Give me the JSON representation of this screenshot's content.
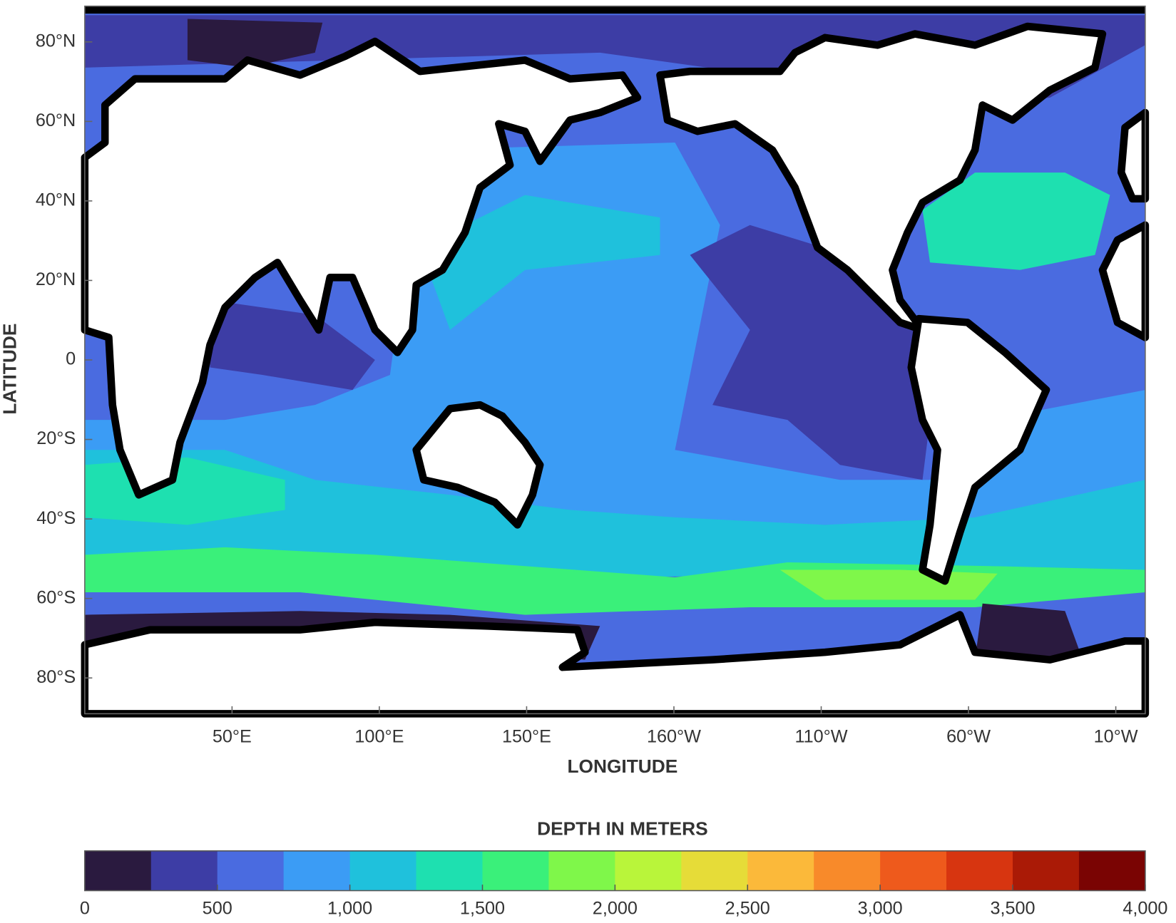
{
  "chart_data": {
    "type": "map",
    "x_label": "LONGITUDE",
    "y_label": "LATITUDE",
    "xlim": [
      0,
      360
    ],
    "ylim": [
      -89,
      89
    ],
    "xticks": [
      {
        "value": 50,
        "label": "50°E"
      },
      {
        "value": 100,
        "label": "100°E"
      },
      {
        "value": 150,
        "label": "150°E"
      },
      {
        "value": 200,
        "label": "160°W"
      },
      {
        "value": 250,
        "label": "110°W"
      },
      {
        "value": 300,
        "label": "60°W"
      },
      {
        "value": 350,
        "label": "10°W"
      }
    ],
    "yticks": [
      {
        "value": 80,
        "label": "80°N"
      },
      {
        "value": 60,
        "label": "60°N"
      },
      {
        "value": 40,
        "label": "40°N"
      },
      {
        "value": 20,
        "label": "20°N"
      },
      0,
      {
        "value": -20,
        "label": "20°S"
      },
      {
        "value": -40,
        "label": "40°S"
      },
      {
        "value": -60,
        "label": "60°S"
      },
      {
        "value": -80,
        "label": "80°S"
      }
    ],
    "colorbar": {
      "title": "DEPTH IN METERS",
      "lim": [
        0,
        4000
      ],
      "ticks": [
        0,
        500,
        {
          "value": 1000,
          "label": "1,000"
        },
        {
          "value": 1500,
          "label": "1,500"
        },
        {
          "value": 2000,
          "label": "2,000"
        },
        {
          "value": 2500,
          "label": "2,500"
        },
        {
          "value": 3000,
          "label": "3,000"
        },
        {
          "value": 3500,
          "label": "3,500"
        },
        {
          "value": 4000,
          "label": "4,000"
        }
      ],
      "colors": [
        "#2a1a3f",
        "#3d3da5",
        "#4a6be0",
        "#3b9cf5",
        "#1fc1dc",
        "#1ee0b0",
        "#3af07a",
        "#7ff74a",
        "#b9f53a",
        "#e6dc38",
        "#fbb93a",
        "#f88a2a",
        "#ee5a1c",
        "#d73510",
        "#aa1a06",
        "#7a0403"
      ]
    }
  }
}
